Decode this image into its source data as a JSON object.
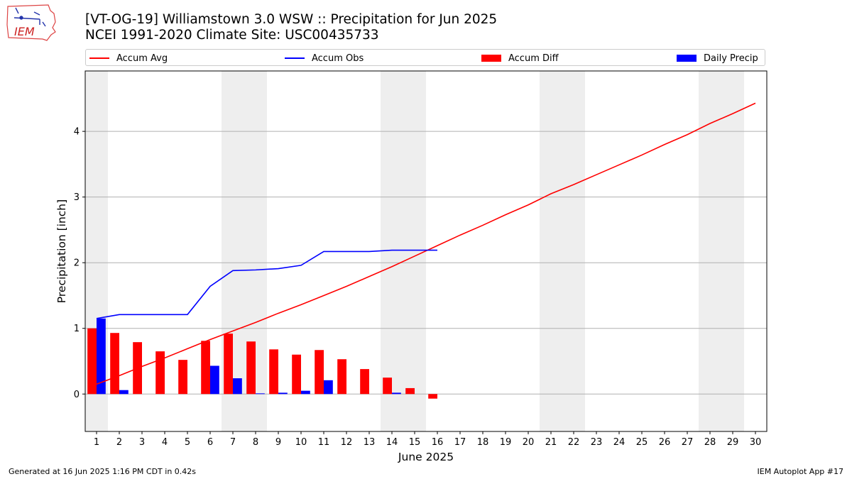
{
  "header": {
    "title_line1": "[VT-OG-19] Williamstown 3.0 WSW :: Precipitation for Jun 2025",
    "title_line2": "NCEI 1991-2020 Climate Site: USC00435733",
    "logo_text": "IEM"
  },
  "legend": {
    "accum_avg": "Accum Avg",
    "accum_obs": "Accum Obs",
    "accum_diff": "Accum Diff",
    "daily_precip": "Daily Precip"
  },
  "footer": {
    "generated": "Generated at 16 Jun 2025 1:16 PM CDT in 0.42s",
    "app": "IEM Autoplot App #17"
  },
  "colors": {
    "accum_avg": "#ff0000",
    "accum_obs": "#0000ff",
    "accum_diff": "#ff0000",
    "daily_precip": "#0000ff",
    "weekend_shade": "#eeeeee",
    "grid": "#b0b0b0"
  },
  "chart_data": {
    "type": "bar",
    "xlabel": "June 2025",
    "ylabel": "Precipitation [inch]",
    "xlim": [
      0.5,
      30.5
    ],
    "ylim": [
      -0.57,
      4.92
    ],
    "yticks": [
      0,
      1,
      2,
      3,
      4
    ],
    "grid": "horizontal",
    "legend_placement": "top",
    "days": [
      1,
      2,
      3,
      4,
      5,
      6,
      7,
      8,
      9,
      10,
      11,
      12,
      13,
      14,
      15,
      16,
      17,
      18,
      19,
      20,
      21,
      22,
      23,
      24,
      25,
      26,
      27,
      28,
      29,
      30
    ],
    "weekend_days": [
      1,
      7,
      8,
      14,
      15,
      21,
      22,
      28,
      29
    ],
    "series": [
      {
        "name": "Accum Avg",
        "kind": "line",
        "x": [
          1,
          2,
          3,
          4,
          5,
          6,
          7,
          8,
          9,
          10,
          11,
          12,
          13,
          14,
          15,
          16,
          17,
          18,
          19,
          20,
          21,
          22,
          23,
          24,
          25,
          26,
          27,
          28,
          29,
          30
        ],
        "values": [
          0.15,
          0.28,
          0.42,
          0.55,
          0.69,
          0.83,
          0.96,
          1.09,
          1.23,
          1.36,
          1.5,
          1.64,
          1.79,
          1.94,
          2.1,
          2.26,
          2.42,
          2.57,
          2.73,
          2.88,
          3.05,
          3.19,
          3.34,
          3.49,
          3.64,
          3.8,
          3.95,
          4.12,
          4.27,
          4.43
        ]
      },
      {
        "name": "Accum Obs",
        "kind": "line",
        "x": [
          1,
          2,
          3,
          4,
          5,
          6,
          7,
          8,
          9,
          10,
          11,
          12,
          13,
          14,
          15,
          16
        ],
        "values": [
          1.15,
          1.21,
          1.21,
          1.21,
          1.21,
          1.64,
          1.88,
          1.89,
          1.91,
          1.96,
          2.17,
          2.17,
          2.17,
          2.19,
          2.19,
          2.19
        ]
      },
      {
        "name": "Accum Diff",
        "kind": "bar",
        "x": [
          1,
          2,
          3,
          4,
          5,
          6,
          7,
          8,
          9,
          10,
          11,
          12,
          13,
          14,
          15,
          16
        ],
        "values": [
          1.0,
          0.93,
          0.79,
          0.65,
          0.52,
          0.81,
          0.92,
          0.8,
          0.68,
          0.6,
          0.67,
          0.53,
          0.38,
          0.25,
          0.09,
          -0.07
        ]
      },
      {
        "name": "Daily Precip",
        "kind": "bar",
        "x": [
          1,
          2,
          3,
          4,
          5,
          6,
          7,
          8,
          9,
          10,
          11,
          12,
          13,
          14,
          15,
          16
        ],
        "values": [
          1.15,
          0.06,
          0,
          0,
          0,
          0.43,
          0.24,
          0.01,
          0.02,
          0.05,
          0.21,
          0,
          0,
          0.02,
          0,
          0
        ]
      }
    ]
  }
}
